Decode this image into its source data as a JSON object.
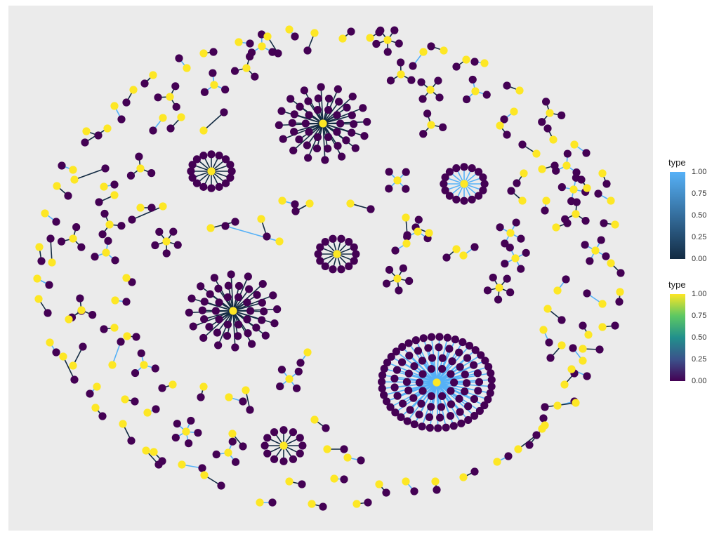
{
  "legends": [
    {
      "title": "type",
      "ticks": [
        "1.00",
        "0.75",
        "0.50",
        "0.25",
        "0.00"
      ],
      "gradient": [
        "#56B1F7",
        "#132B43"
      ]
    },
    {
      "title": "type",
      "ticks": [
        "1.00",
        "0.75",
        "0.50",
        "0.25",
        "0.00"
      ],
      "gradient": [
        "#FDE725",
        "#5DC863",
        "#21908C",
        "#3B528B",
        "#440154"
      ]
    }
  ],
  "colors": {
    "panel_bg": "#EBEBEB",
    "node_type_1": "#FDE725",
    "node_type_0": "#440154",
    "edge_type_1": "#56B1F7",
    "edge_type_0": "#132B43"
  }
}
